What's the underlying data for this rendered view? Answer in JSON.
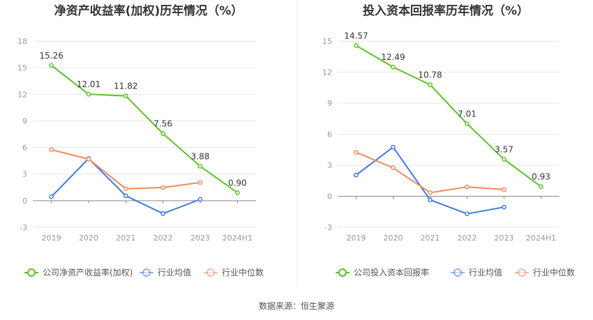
{
  "source_label": "数据来源：恒生聚源",
  "chart_data": [
    {
      "type": "line",
      "title": "净资产收益率(加权)历年情况（%）",
      "categories": [
        "2019",
        "2020",
        "2021",
        "2022",
        "2023",
        "2024H1"
      ],
      "yticks": [
        -3,
        0,
        3,
        6,
        9,
        12,
        15,
        18
      ],
      "ylim": [
        -3,
        18
      ],
      "grid": true,
      "legend_position": "bottom",
      "series": [
        {
          "name": "公司净资产收益率(加权)",
          "color": "#5cc127",
          "values": [
            15.26,
            12.01,
            11.82,
            7.56,
            3.88,
            0.9
          ],
          "labels": [
            "15.26",
            "12.01",
            "11.82",
            "7.56",
            "3.88",
            "0.90"
          ]
        },
        {
          "name": "行业均值",
          "color": "#3f79e0",
          "values": [
            0.45,
            4.75,
            0.55,
            -1.45,
            0.15,
            null
          ]
        },
        {
          "name": "行业中位数",
          "color": "#f08a62",
          "values": [
            5.75,
            4.7,
            1.35,
            1.48,
            2.05,
            null
          ]
        }
      ]
    },
    {
      "type": "line",
      "title": "投入资本回报率历年情况（%）",
      "categories": [
        "2019",
        "2020",
        "2021",
        "2022",
        "2023",
        "2024H1"
      ],
      "yticks": [
        -3,
        0,
        3,
        6,
        9,
        12,
        15
      ],
      "ylim": [
        -3,
        15
      ],
      "grid": true,
      "legend_position": "bottom",
      "series": [
        {
          "name": "公司投入资本回报率",
          "color": "#5cc127",
          "values": [
            14.57,
            12.49,
            10.78,
            7.01,
            3.57,
            0.93
          ],
          "labels": [
            "14.57",
            "12.49",
            "10.78",
            "7.01",
            "3.57",
            "0.93"
          ]
        },
        {
          "name": "行业均值",
          "color": "#3f79e0",
          "values": [
            2.05,
            4.75,
            -0.35,
            -1.7,
            -1.05,
            null
          ]
        },
        {
          "name": "行业中位数",
          "color": "#f08a62",
          "values": [
            4.25,
            2.75,
            0.35,
            0.9,
            0.65,
            null
          ]
        }
      ]
    }
  ]
}
